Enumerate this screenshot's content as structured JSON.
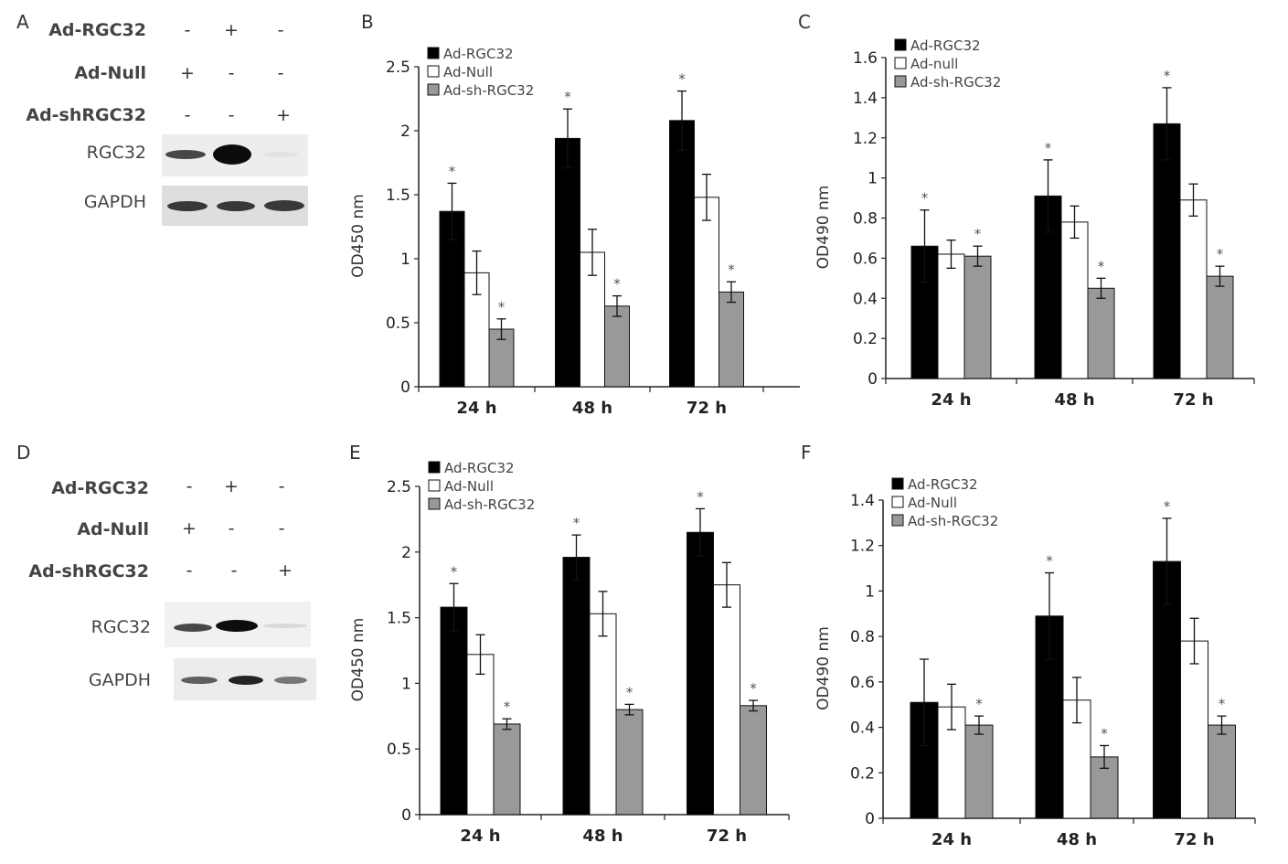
{
  "panels": {
    "A": "A",
    "B": "B",
    "C": "C",
    "D": "D",
    "E": "E",
    "F": "F"
  },
  "blots": [
    {
      "id": "A",
      "rows": [
        {
          "label": "Ad-RGC32",
          "signs": [
            "-",
            "+",
            "-"
          ]
        },
        {
          "label": "Ad-Null",
          "signs": [
            "+",
            "-",
            "-"
          ]
        },
        {
          "label": "Ad-shRGC32",
          "signs": [
            "-",
            "-",
            "+"
          ]
        }
      ],
      "bands": [
        {
          "label": "RGC32",
          "intensity": [
            0.7,
            1.0,
            0.05
          ]
        },
        {
          "label": "GAPDH",
          "intensity": [
            0.85,
            0.85,
            0.85
          ]
        }
      ]
    },
    {
      "id": "D",
      "rows": [
        {
          "label": "Ad-RGC32",
          "signs": [
            "-",
            "+",
            "-"
          ]
        },
        {
          "label": "Ad-Null",
          "signs": [
            "+",
            "-",
            "-"
          ]
        },
        {
          "label": "Ad-shRGC32",
          "signs": [
            "-",
            "-",
            "+"
          ]
        }
      ],
      "bands": [
        {
          "label": "RGC32",
          "intensity": [
            0.7,
            1.0,
            0.1
          ]
        },
        {
          "label": "GAPDH",
          "intensity": [
            0.75,
            0.85,
            0.6
          ]
        }
      ]
    }
  ],
  "colors": {
    "series1": "#000000",
    "series2": "#ffffff",
    "series3": "#999999",
    "axis": "#222222"
  },
  "chart_data": [
    {
      "id": "B",
      "type": "bar",
      "categories": [
        "24 h",
        "48 h",
        "72 h"
      ],
      "ylabel": "OD450 nm",
      "ylim": [
        0,
        2.5
      ],
      "yticks": [
        0,
        0.5,
        1,
        1.5,
        2,
        2.5
      ],
      "legend": "top-left",
      "series": [
        {
          "name": "Ad-RGC32",
          "values": [
            1.37,
            1.94,
            2.08
          ],
          "errors": [
            0.22,
            0.23,
            0.23
          ],
          "star": [
            true,
            true,
            true
          ]
        },
        {
          "name": "Ad-Null",
          "values": [
            0.89,
            1.05,
            1.48
          ],
          "errors": [
            0.17,
            0.18,
            0.18
          ],
          "star": [
            false,
            false,
            false
          ]
        },
        {
          "name": "Ad-sh-RGC32",
          "values": [
            0.45,
            0.63,
            0.74
          ],
          "errors": [
            0.08,
            0.08,
            0.08
          ],
          "star": [
            true,
            true,
            true
          ]
        }
      ]
    },
    {
      "id": "C",
      "type": "bar",
      "categories": [
        "24 h",
        "48 h",
        "72 h"
      ],
      "ylabel": "OD490 nm",
      "ylim": [
        0,
        1.6
      ],
      "yticks": [
        0,
        0.2,
        0.4,
        0.6,
        0.8,
        1,
        1.2,
        1.4,
        1.6
      ],
      "legend": "top-left",
      "series": [
        {
          "name": "Ad-RGC32",
          "values": [
            0.66,
            0.91,
            1.27
          ],
          "errors": [
            0.18,
            0.18,
            0.18
          ],
          "star": [
            true,
            true,
            true
          ]
        },
        {
          "name": "Ad-null",
          "values": [
            0.62,
            0.78,
            0.89
          ],
          "errors": [
            0.07,
            0.08,
            0.08
          ],
          "star": [
            false,
            false,
            false
          ]
        },
        {
          "name": "Ad-sh-RGC32",
          "values": [
            0.61,
            0.45,
            0.51
          ],
          "errors": [
            0.05,
            0.05,
            0.05
          ],
          "star": [
            true,
            true,
            true
          ]
        }
      ]
    },
    {
      "id": "E",
      "type": "bar",
      "categories": [
        "24 h",
        "48 h",
        "72 h"
      ],
      "ylabel": "OD450 nm",
      "ylim": [
        0,
        2.5
      ],
      "yticks": [
        0,
        0.5,
        1,
        1.5,
        2,
        2.5
      ],
      "legend": "top-left",
      "series": [
        {
          "name": "Ad-RGC32",
          "values": [
            1.58,
            1.96,
            2.15
          ],
          "errors": [
            0.18,
            0.17,
            0.18
          ],
          "star": [
            true,
            true,
            true
          ]
        },
        {
          "name": "Ad-Null",
          "values": [
            1.22,
            1.53,
            1.75
          ],
          "errors": [
            0.15,
            0.17,
            0.17
          ],
          "star": [
            false,
            false,
            false
          ]
        },
        {
          "name": "Ad-sh-RGC32",
          "values": [
            0.69,
            0.8,
            0.83
          ],
          "errors": [
            0.04,
            0.04,
            0.04
          ],
          "star": [
            true,
            true,
            true
          ]
        }
      ]
    },
    {
      "id": "F",
      "type": "bar",
      "categories": [
        "24 h",
        "48 h",
        "72 h"
      ],
      "ylabel": "OD490 nm",
      "ylim": [
        0,
        1.4
      ],
      "yticks": [
        0,
        0.2,
        0.4,
        0.6,
        0.8,
        1,
        1.2,
        1.4
      ],
      "legend": "top-left",
      "series": [
        {
          "name": "Ad-RGC32",
          "values": [
            0.51,
            0.89,
            1.13
          ],
          "errors": [
            0.19,
            0.19,
            0.19
          ],
          "star": [
            false,
            true,
            true
          ]
        },
        {
          "name": "Ad-Null",
          "values": [
            0.49,
            0.52,
            0.78
          ],
          "errors": [
            0.1,
            0.1,
            0.1
          ],
          "star": [
            false,
            false,
            false
          ]
        },
        {
          "name": "Ad-sh-RGC32",
          "values": [
            0.41,
            0.27,
            0.41
          ],
          "errors": [
            0.04,
            0.05,
            0.04
          ],
          "star": [
            true,
            true,
            true
          ]
        }
      ]
    }
  ]
}
